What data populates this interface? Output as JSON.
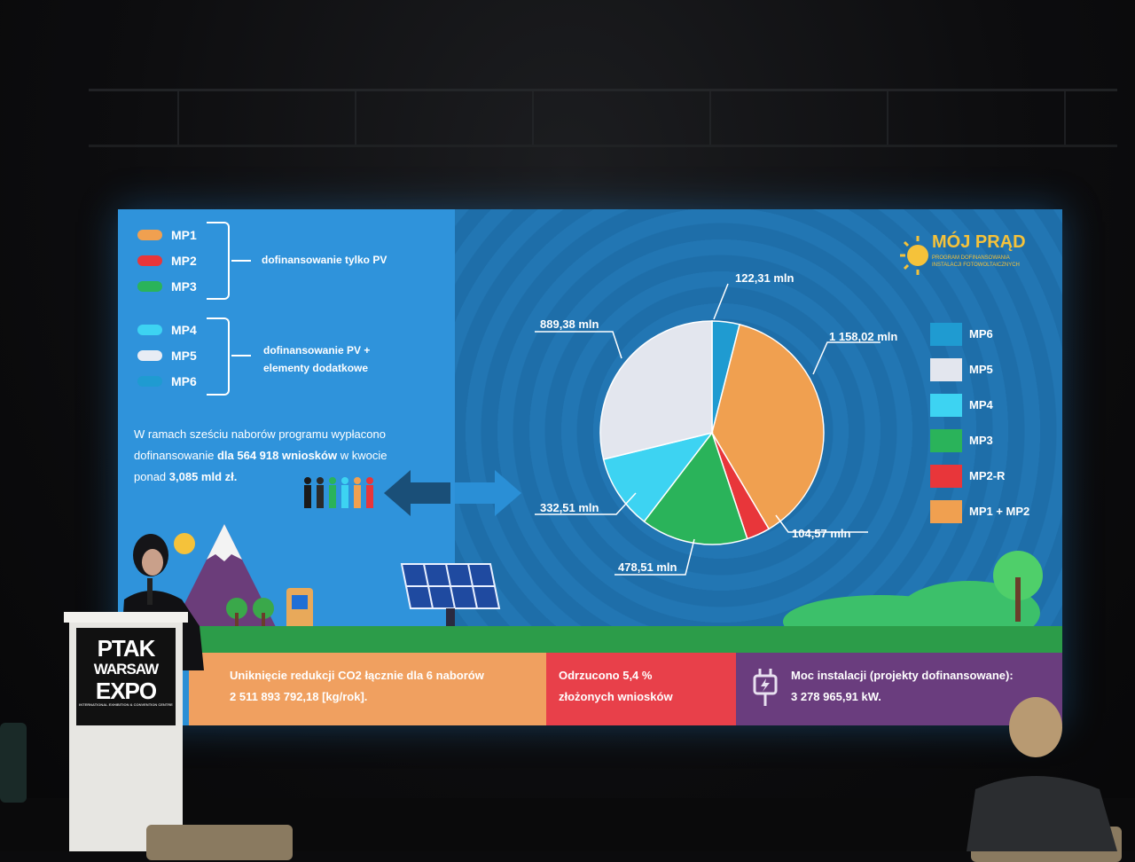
{
  "venue_sign": {
    "line1": "PTAK",
    "line2": "WARSAW",
    "line3": "EXPO",
    "tagline": "INTERNATIONAL EXHIBITION & CONVENTION CENTRE"
  },
  "slide": {
    "groups": [
      {
        "items": [
          {
            "label": "MP1",
            "color": "#f0a050"
          },
          {
            "label": "MP2",
            "color": "#e8363a"
          },
          {
            "label": "MP3",
            "color": "#2ab35a"
          }
        ],
        "description": "dofinansowanie tylko PV"
      },
      {
        "items": [
          {
            "label": "MP4",
            "color": "#3dd3f2"
          },
          {
            "label": "MP5",
            "color": "#e8ecf4"
          },
          {
            "label": "MP6",
            "color": "#1f9bd1"
          }
        ],
        "description_line1": "dofinansowanie PV +",
        "description_line2": "elementy dodatkowe"
      }
    ],
    "summary": {
      "line1": "W ramach sześciu naborów programu wypłacono",
      "line2_pre": "dofinansowanie ",
      "line2_bold": "dla 564 918 wniosków",
      "line2_post": " w kwocie",
      "line3_pre": "ponad ",
      "line3_bold": "3,085 mld zł."
    },
    "logo": {
      "title": "MÓJ PRĄD",
      "subtitle1": "PROGRAM DOFINANSOWANIA",
      "subtitle2": "INSTALACJI FOTOWOLTAICZNYCH"
    },
    "pie_labels": {
      "mp6": "122,31 mln",
      "mp12": "1 158,02 mln",
      "mp5": "889,38 mln",
      "mp4": "332,51 mln",
      "mp3": "478,51 mln",
      "mp2r": "104,57 mln"
    },
    "legend": [
      {
        "label": "MP6",
        "color": "#1f9bd1"
      },
      {
        "label": "MP5",
        "color": "#e3e6ee"
      },
      {
        "label": "MP4",
        "color": "#3dd3f2"
      },
      {
        "label": "MP3",
        "color": "#2ab35a"
      },
      {
        "label": "MP2-R",
        "color": "#e8363a"
      },
      {
        "label": "MP1 + MP2",
        "color": "#f0a050"
      }
    ],
    "bands": {
      "co2_line1": "Uniknięcie redukcji CO2  łącznie dla 6 naborów",
      "co2_line2": "2 511 893 792,18 [kg/rok].",
      "rejected_line1": "Odrzucono 5,4 %",
      "rejected_line2": "złożonych wniosków",
      "power_line1": "Moc instalacji (projekty dofinansowane):",
      "power_line2": "3 278 965,91 kW."
    }
  },
  "chart_data": {
    "type": "pie",
    "title": "",
    "slices": [
      {
        "name": "MP6",
        "value": 122.31,
        "color": "#1f9bd1"
      },
      {
        "name": "MP1 + MP2",
        "value": 1158.02,
        "color": "#f0a050"
      },
      {
        "name": "MP2-R",
        "value": 104.57,
        "color": "#e8363a"
      },
      {
        "name": "MP3",
        "value": 478.51,
        "color": "#2ab35a"
      },
      {
        "name": "MP4",
        "value": 332.51,
        "color": "#3dd3f2"
      },
      {
        "name": "MP5",
        "value": 889.38,
        "color": "#e3e6ee"
      }
    ],
    "unit": "mln",
    "legend_position": "right"
  }
}
